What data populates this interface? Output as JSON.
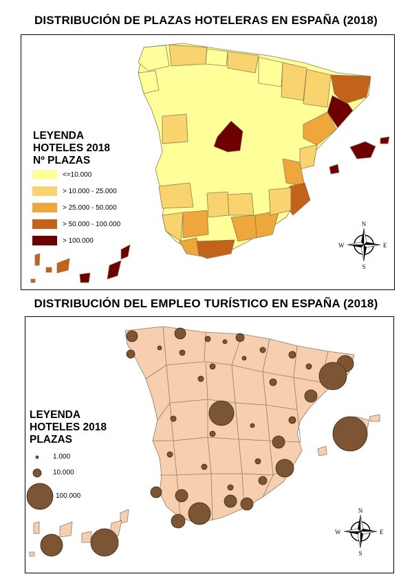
{
  "maps": [
    {
      "title": "DISTRIBUCIÓN DE PLAZAS HOTELERAS EN ESPAÑA (2018)",
      "legend": {
        "title_lines": [
          "LEYENDA",
          "HOTELES 2018",
          "Nº PLAZAS"
        ],
        "items": [
          {
            "label": "<=10.000",
            "color": "#ffff99"
          },
          {
            "label": "> 10.000 - 25.000",
            "color": "#f8d36e"
          },
          {
            "label": "> 25.000 - 50.000",
            "color": "#eda73a"
          },
          {
            "label": "> 50.000 - 100.000",
            "color": "#c2621b"
          },
          {
            "label": "> 100.000",
            "color": "#6d0000"
          }
        ]
      },
      "compass": {
        "n": "N",
        "s": "S",
        "e": "E",
        "w": "W"
      }
    },
    {
      "title": "DISTRIBUCIÓN DEL EMPLEO TURÍSTICO EN ESPAÑA (2018)",
      "legend": {
        "title_lines": [
          "LEYENDA",
          "HOTELES 2018",
          "PLAZAS"
        ],
        "items": [
          {
            "label": "1.000"
          },
          {
            "label": "10.000"
          },
          {
            "label": "100.000"
          }
        ]
      },
      "map_fill": "#f7cfae",
      "bubble_color": "#7b5534",
      "compass": {
        "n": "N",
        "s": "S",
        "e": "E",
        "w": "W"
      }
    }
  ]
}
